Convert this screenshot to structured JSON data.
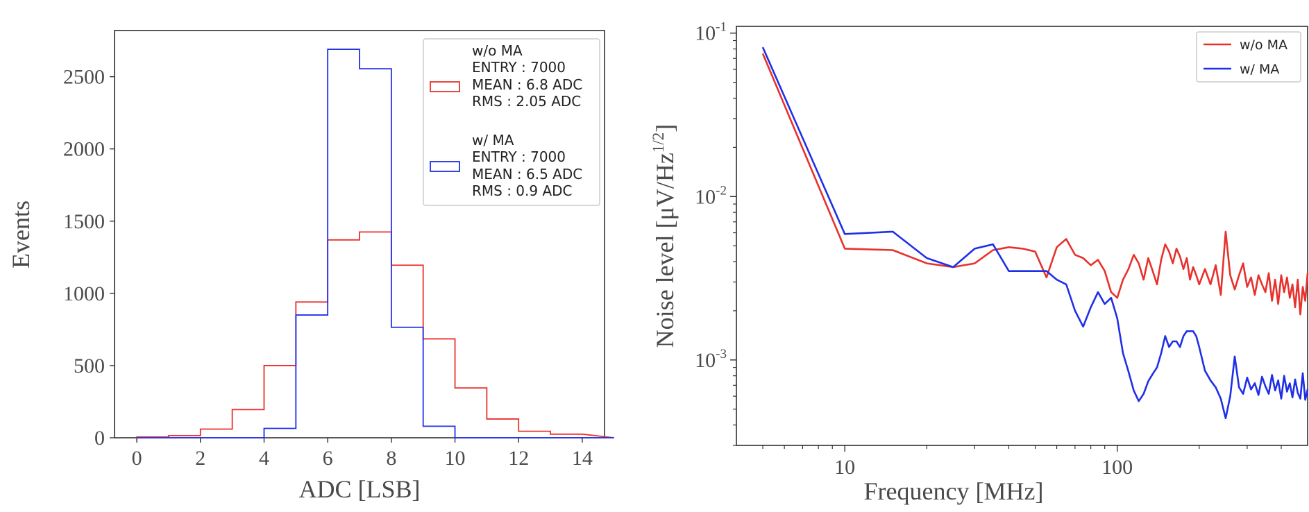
{
  "chart_data": [
    {
      "type": "histogram",
      "xlabel": "ADC [LSB]",
      "ylabel": "Events",
      "xlim": [
        -0.7,
        14.7
      ],
      "ylim": [
        0,
        2820
      ],
      "xticks": [
        "0",
        "2",
        "4",
        "6",
        "8",
        "10",
        "12",
        "14"
      ],
      "yticks": [
        "0",
        "500",
        "1000",
        "1500",
        "2000",
        "2500"
      ],
      "bin_edges": [
        0,
        1,
        2,
        3,
        4,
        5,
        6,
        7,
        8,
        9,
        10,
        11,
        12,
        13,
        14
      ],
      "legend_position": "top-right",
      "series": [
        {
          "name": "w/o MA",
          "color": "#e8312c",
          "values": [
            5,
            15,
            60,
            195,
            500,
            940,
            1370,
            1425,
            1195,
            685,
            345,
            130,
            45,
            25
          ],
          "legend_lines": [
            "w/o MA",
            "ENTRY : 7000",
            "MEAN : 6.8 ADC",
            "RMS : 2.05 ADC"
          ]
        },
        {
          "name": "w/ MA",
          "color": "#1f2fe8",
          "values": [
            0,
            0,
            0,
            0,
            65,
            850,
            2690,
            2555,
            765,
            80,
            0,
            0,
            0,
            0
          ],
          "legend_lines": [
            "w/ MA",
            "ENTRY : 7000",
            "MEAN : 6.5 ADC",
            "RMS : 0.9 ADC"
          ]
        }
      ]
    },
    {
      "type": "line",
      "xlabel": "Frequency [MHz]",
      "ylabel_main": "Noise level [μV/Hz",
      "ylabel_sup": "1/2",
      "ylabel_close": "]",
      "xscale": "log",
      "yscale": "log",
      "xlim": [
        4,
        500
      ],
      "ylim": [
        0.0003,
        0.11
      ],
      "xticks": [
        {
          "value": 10,
          "label": "10"
        },
        {
          "value": 100,
          "label": "100"
        }
      ],
      "yticks": [
        {
          "value": 0.1,
          "base": "10",
          "exp": "-1"
        },
        {
          "value": 0.01,
          "base": "10",
          "exp": "-2"
        },
        {
          "value": 0.001,
          "base": "10",
          "exp": "-3"
        }
      ],
      "legend_position": "top-right",
      "series": [
        {
          "name": "w/o MA",
          "color": "#e8312c",
          "x": [
            5,
            10,
            15,
            20,
            25,
            30,
            35,
            40,
            45,
            50,
            55,
            60,
            65,
            70,
            75,
            80,
            85,
            90,
            95,
            100,
            105,
            110,
            115,
            120,
            125,
            130,
            135,
            140,
            145,
            150,
            155,
            160,
            165,
            170,
            175,
            180,
            185,
            190,
            195,
            200,
            210,
            220,
            230,
            240,
            250,
            260,
            270,
            280,
            290,
            300,
            310,
            320,
            330,
            340,
            350,
            360,
            370,
            380,
            390,
            400,
            410,
            420,
            430,
            440,
            450,
            460,
            470,
            480,
            490,
            500
          ],
          "y": [
            0.075,
            0.0048,
            0.0047,
            0.0039,
            0.0037,
            0.0039,
            0.0047,
            0.0049,
            0.0048,
            0.0046,
            0.0032,
            0.0049,
            0.0055,
            0.0044,
            0.0042,
            0.0038,
            0.0041,
            0.0035,
            0.0026,
            0.0024,
            0.0031,
            0.0036,
            0.0044,
            0.0039,
            0.0031,
            0.0042,
            0.0035,
            0.0029,
            0.0041,
            0.0051,
            0.0046,
            0.0039,
            0.0048,
            0.0043,
            0.0036,
            0.0042,
            0.0031,
            0.0037,
            0.0033,
            0.0029,
            0.0036,
            0.0029,
            0.0038,
            0.0025,
            0.0061,
            0.0033,
            0.0027,
            0.0033,
            0.0039,
            0.0028,
            0.0032,
            0.0025,
            0.0033,
            0.0029,
            0.0026,
            0.0034,
            0.0023,
            0.0031,
            0.0022,
            0.0033,
            0.0026,
            0.0032,
            0.0024,
            0.0029,
            0.0021,
            0.0031,
            0.0019,
            0.0028,
            0.0023,
            0.0034
          ]
        },
        {
          "name": "w/ MA",
          "color": "#1f2fe8",
          "x": [
            5,
            10,
            15,
            20,
            25,
            30,
            35,
            40,
            45,
            50,
            55,
            60,
            65,
            70,
            75,
            80,
            85,
            90,
            95,
            100,
            105,
            110,
            115,
            120,
            125,
            130,
            135,
            140,
            145,
            150,
            155,
            160,
            165,
            170,
            175,
            180,
            185,
            190,
            195,
            200,
            210,
            220,
            230,
            240,
            250,
            260,
            270,
            280,
            290,
            300,
            310,
            320,
            330,
            340,
            350,
            360,
            370,
            380,
            390,
            400,
            410,
            420,
            430,
            440,
            450,
            460,
            470,
            480,
            490,
            500
          ],
          "y": [
            0.082,
            0.0059,
            0.0061,
            0.0042,
            0.0037,
            0.0048,
            0.0051,
            0.0035,
            0.0035,
            0.0035,
            0.0035,
            0.0031,
            0.0029,
            0.002,
            0.0016,
            0.0021,
            0.0026,
            0.0022,
            0.0024,
            0.0018,
            0.0011,
            0.00085,
            0.00065,
            0.00056,
            0.00062,
            0.00074,
            0.00082,
            0.0009,
            0.0011,
            0.0014,
            0.0012,
            0.0013,
            0.0013,
            0.0012,
            0.0014,
            0.0015,
            0.0015,
            0.0015,
            0.0014,
            0.0012,
            0.00086,
            0.00075,
            0.00068,
            0.00058,
            0.00044,
            0.0006,
            0.00105,
            0.00068,
            0.00062,
            0.00078,
            0.00066,
            0.00072,
            0.00061,
            0.00079,
            0.00069,
            0.00062,
            0.00081,
            0.00065,
            0.00075,
            0.00058,
            0.0008,
            0.00064,
            0.00072,
            0.00059,
            0.00076,
            0.00063,
            0.00058,
            0.00083,
            0.00057,
            0.00066
          ]
        }
      ]
    }
  ]
}
